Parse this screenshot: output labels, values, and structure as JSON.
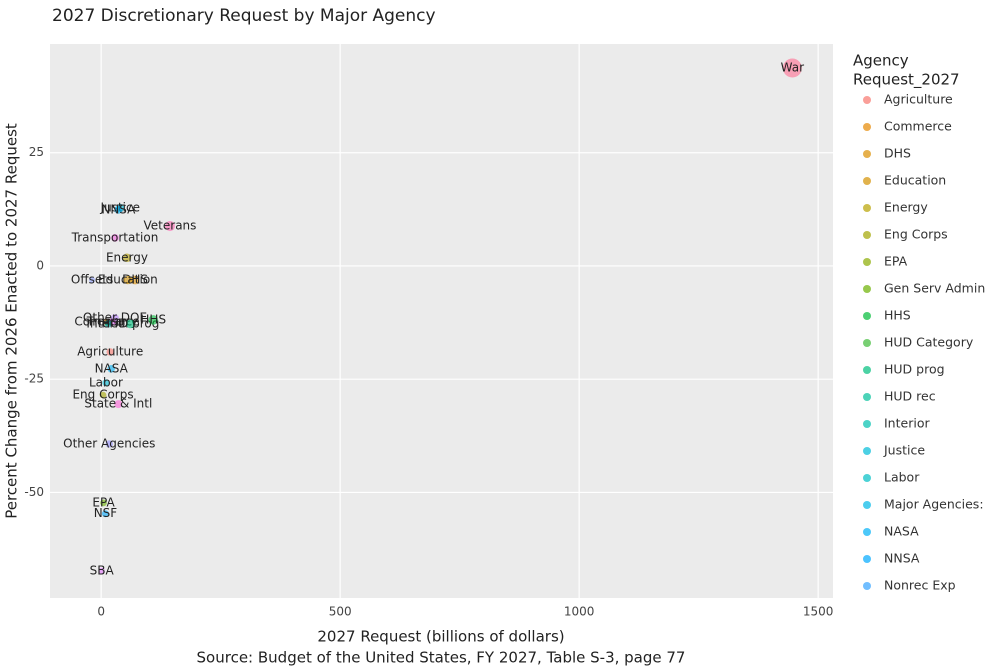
{
  "chart_data": {
    "type": "scatter",
    "title": "2027 Discretionary Request by Major Agency",
    "x_label": "2027 Request (billions of dollars)",
    "y_label": "Percent Change from 2026 Enacted to 2027 Request",
    "caption": "Source: Budget of the United States, FY 2027, Table S-3, page 77",
    "xlim": [
      -107,
      1531
    ],
    "ylim": [
      -73.3,
      49
    ],
    "xticks": [
      0,
      500,
      1000,
      1500
    ],
    "yticks": [
      -50,
      -25,
      0,
      25
    ],
    "grid": true,
    "points": [
      {
        "label": "War",
        "x": 1446,
        "y": 43.7,
        "color": "#FF6C91"
      },
      {
        "label": "Veterans",
        "x": 144,
        "y": 8.8,
        "color": "#FF64B0"
      },
      {
        "label": "Justice",
        "x": 40,
        "y": 12.8,
        "color": "#00BCD8"
      },
      {
        "label": "NNSA",
        "x": 36,
        "y": 12.4,
        "color": "#00B0F6"
      },
      {
        "label": "Transportation",
        "x": 29,
        "y": 6.2,
        "color": "#F564E3"
      },
      {
        "label": "Energy",
        "x": 54,
        "y": 1.8,
        "color": "#B8A200"
      },
      {
        "label": "Offsets",
        "x": -19,
        "y": -3.1,
        "color": "#8FA0FF"
      },
      {
        "label": "DHS",
        "x": 71,
        "y": -3.1,
        "color": "#DB8E00"
      },
      {
        "label": "Education",
        "x": 56,
        "y": -3.1,
        "color": "#D49200"
      },
      {
        "label": "Other DOE",
        "x": 29,
        "y": -11.5,
        "color": "#B983FF"
      },
      {
        "label": "Commerce",
        "x": 12,
        "y": -12.4,
        "color": "#E58700"
      },
      {
        "label": "Treasury",
        "x": 23,
        "y": -12.4,
        "color": "#E76BF3"
      },
      {
        "label": "Interior",
        "x": 15,
        "y": -12.8,
        "color": "#00C0AF"
      },
      {
        "label": "HUD prog",
        "x": 61,
        "y": -12.8,
        "color": "#00BF7D"
      },
      {
        "label": "HHS",
        "x": 109,
        "y": -11.9,
        "color": "#00BA38"
      },
      {
        "label": "Agriculture",
        "x": 19,
        "y": -19,
        "color": "#F8766D"
      },
      {
        "label": "NASA",
        "x": 21,
        "y": -22.7,
        "color": "#00B0F6"
      },
      {
        "label": "Labor",
        "x": 10,
        "y": -25.8,
        "color": "#00BCD8"
      },
      {
        "label": "Eng Corps",
        "x": 4,
        "y": -28.5,
        "color": "#A3A500"
      },
      {
        "label": "State & Intl",
        "x": 36,
        "y": -30.5,
        "color": "#FB61D7"
      },
      {
        "label": "Other Agencies",
        "x": 17,
        "y": -39.3,
        "color": "#9590FF"
      },
      {
        "label": "EPA",
        "x": 5,
        "y": -52.3,
        "color": "#6BB100"
      },
      {
        "label": "NSF",
        "x": 9,
        "y": -54.7,
        "color": "#00A9FF"
      },
      {
        "label": "SBA",
        "x": 1,
        "y": -67.3,
        "color": "#DE71F9"
      }
    ],
    "legend": {
      "title": [
        "Agency",
        "Request_2027"
      ],
      "position": "right",
      "items": [
        {
          "name": "Agriculture",
          "color": "#F8766D"
        },
        {
          "name": "Commerce",
          "color": "#E58700"
        },
        {
          "name": "DHS",
          "color": "#DB8E00"
        },
        {
          "name": "Education",
          "color": "#D49200"
        },
        {
          "name": "Energy",
          "color": "#B8A200"
        },
        {
          "name": "Eng Corps",
          "color": "#A3A500"
        },
        {
          "name": "EPA",
          "color": "#8AAB00"
        },
        {
          "name": "Gen Serv Admin",
          "color": "#6BB100"
        },
        {
          "name": "HHS",
          "color": "#00BA38"
        },
        {
          "name": "HUD Category",
          "color": "#3EBA38"
        },
        {
          "name": "HUD prog",
          "color": "#00BF7D"
        },
        {
          "name": "HUD rec",
          "color": "#00C19A"
        },
        {
          "name": "Interior",
          "color": "#00C0AF"
        },
        {
          "name": "Justice",
          "color": "#00BCD8"
        },
        {
          "name": "Labor",
          "color": "#00BFC4"
        },
        {
          "name": "Major Agencies:",
          "color": "#00B8E7"
        },
        {
          "name": "NASA",
          "color": "#00B0F6"
        },
        {
          "name": "NNSA",
          "color": "#00A9FF"
        },
        {
          "name": "Nonrec Exp",
          "color": "#35A2FF"
        }
      ]
    }
  }
}
